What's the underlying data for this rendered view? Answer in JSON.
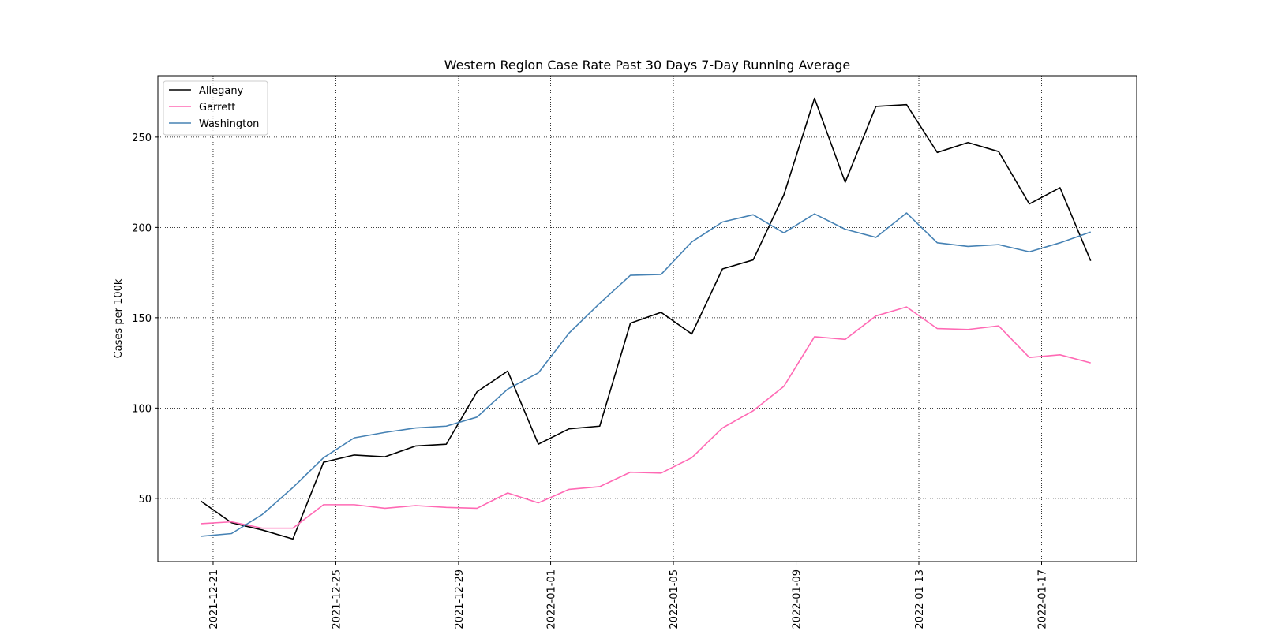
{
  "chart_data": {
    "type": "line",
    "title": "Western Region Case Rate  Past 30 Days 7-Day Running Average",
    "xlabel": "",
    "ylabel": "Cases per 100k",
    "grid": true,
    "grid_style": "dotted",
    "legend_position": "top-left",
    "x": [
      "2021-12-20",
      "2021-12-21",
      "2021-12-22",
      "2021-12-23",
      "2021-12-24",
      "2021-12-25",
      "2021-12-26",
      "2021-12-27",
      "2021-12-28",
      "2021-12-29",
      "2021-12-30",
      "2021-12-31",
      "2022-01-01",
      "2022-01-02",
      "2022-01-03",
      "2022-01-04",
      "2022-01-05",
      "2022-01-06",
      "2022-01-07",
      "2022-01-08",
      "2022-01-09",
      "2022-01-10",
      "2022-01-11",
      "2022-01-12",
      "2022-01-13",
      "2022-01-14",
      "2022-01-15",
      "2022-01-16",
      "2022-01-17",
      "2022-01-18"
    ],
    "x_ticks": [
      "2021-12-21",
      "2021-12-25",
      "2021-12-29",
      "2022-01-01",
      "2022-01-05",
      "2022-01-09",
      "2022-01-13",
      "2022-01-17"
    ],
    "x_tick_positions": [
      0.4,
      4.4,
      8.4,
      11.4,
      15.4,
      19.4,
      23.4,
      27.4
    ],
    "xlim": [
      -1.4,
      30.5
    ],
    "y_ticks": [
      50,
      100,
      150,
      200,
      250
    ],
    "ylim": [
      15,
      284
    ],
    "series": [
      {
        "name": "Allegany",
        "color": "#000000",
        "values": [
          48.5,
          36.5,
          32.5,
          27.5,
          70.0,
          74.0,
          73.0,
          79.0,
          80.0,
          109.0,
          120.5,
          80.0,
          88.5,
          90.0,
          147.0,
          153.0,
          141.0,
          177.0,
          182.0,
          218.0,
          271.5,
          225.0,
          267.0,
          268.0,
          241.5,
          247.0,
          242.0,
          213.0,
          222.0,
          181.5
        ]
      },
      {
        "name": "Garrett",
        "color": "#ff69b4",
        "values": [
          36.0,
          37.0,
          33.5,
          33.5,
          46.5,
          46.5,
          44.5,
          46.0,
          45.0,
          44.5,
          53.0,
          47.5,
          55.0,
          56.5,
          64.5,
          64.0,
          72.5,
          89.0,
          98.5,
          112.0,
          139.5,
          138.0,
          151.0,
          156.0,
          144.0,
          143.5,
          145.5,
          128.0,
          129.5,
          125.0
        ]
      },
      {
        "name": "Washington",
        "color": "#4682b4",
        "values": [
          29.0,
          30.5,
          41.0,
          56.0,
          72.5,
          83.5,
          86.5,
          89.0,
          90.0,
          95.0,
          110.5,
          119.5,
          141.5,
          158.0,
          173.5,
          174.0,
          192.0,
          203.0,
          207.0,
          197.0,
          207.5,
          199.0,
          194.5,
          208.0,
          191.5,
          189.5,
          190.5,
          186.5,
          191.5,
          197.5
        ]
      }
    ]
  }
}
